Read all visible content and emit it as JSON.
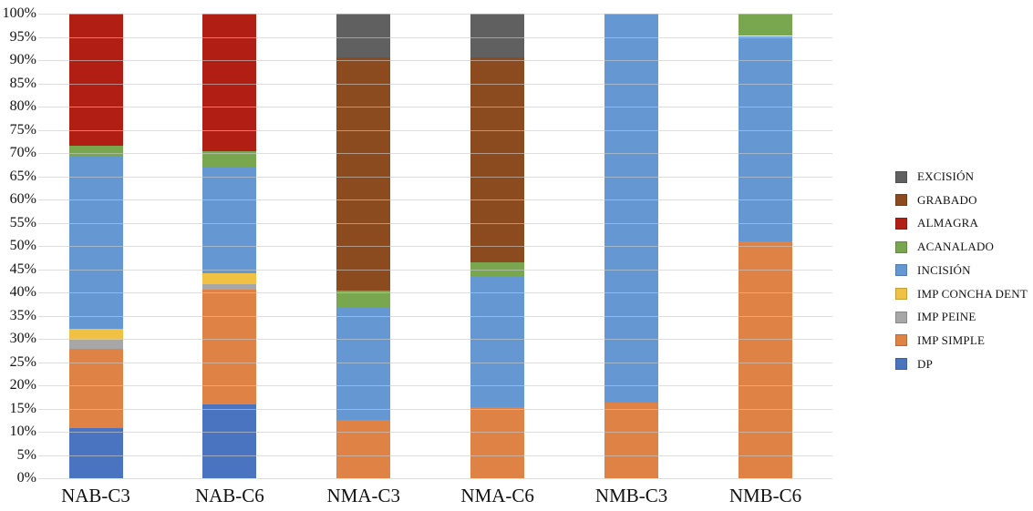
{
  "chart_data": {
    "type": "bar",
    "variant": "stacked-100-percent",
    "title": "",
    "xlabel": "",
    "ylabel": "",
    "ylim": [
      0,
      100
    ],
    "grid": true,
    "legend_position": "right",
    "categories": [
      "NAB-C3",
      "NAB-C6",
      "NMA-C3",
      "NMA-C6",
      "NMB-C3",
      "NMB-C6"
    ],
    "y_ticks": [
      "100%",
      "95%",
      "90%",
      "85%",
      "80%",
      "75%",
      "70%",
      "65%",
      "60%",
      "55%",
      "50%",
      "45%",
      "40%",
      "35%",
      "30%",
      "25%",
      "20%",
      "15%",
      "10%",
      "5%",
      "0%"
    ],
    "series": [
      {
        "name": "DP",
        "color": "#4a74c0",
        "values": [
          10.8,
          15.8,
          0,
          0,
          0,
          0
        ]
      },
      {
        "name": "IMP SIMPLE",
        "color": "#de8245",
        "values": [
          17.0,
          24.7,
          12.5,
          15.2,
          16.3,
          51.0
        ]
      },
      {
        "name": "IMP PEINE",
        "color": "#a7a7a7",
        "values": [
          2.1,
          1.3,
          0,
          0,
          0,
          0
        ]
      },
      {
        "name": "IMP CONCHA DENT",
        "color": "#f0c143",
        "values": [
          2.3,
          2.3,
          0,
          0,
          0,
          0
        ]
      },
      {
        "name": "INCISIÓN",
        "color": "#6598d3",
        "values": [
          37.1,
          23.0,
          24.2,
          28.3,
          83.7,
          44.2
        ]
      },
      {
        "name": "ACANALADO",
        "color": "#78a750",
        "values": [
          2.3,
          3.3,
          3.7,
          2.9,
          0,
          4.8
        ]
      },
      {
        "name": "ALMAGRA",
        "color": "#b11e14",
        "values": [
          28.4,
          29.6,
          0,
          0,
          0,
          0
        ]
      },
      {
        "name": "GRABADO",
        "color": "#8b4b1e",
        "values": [
          0,
          0,
          50.1,
          44.1,
          0,
          0
        ]
      },
      {
        "name": "EXCISIÓN",
        "color": "#606060",
        "values": [
          0,
          0,
          9.5,
          9.5,
          0,
          0
        ]
      }
    ],
    "legend": [
      "EXCISIÓN",
      "GRABADO",
      "ALMAGRA",
      "ACANALADO",
      "INCISIÓN",
      "IMP CONCHA DENT",
      "IMP PEINE",
      "IMP SIMPLE",
      "DP"
    ]
  }
}
